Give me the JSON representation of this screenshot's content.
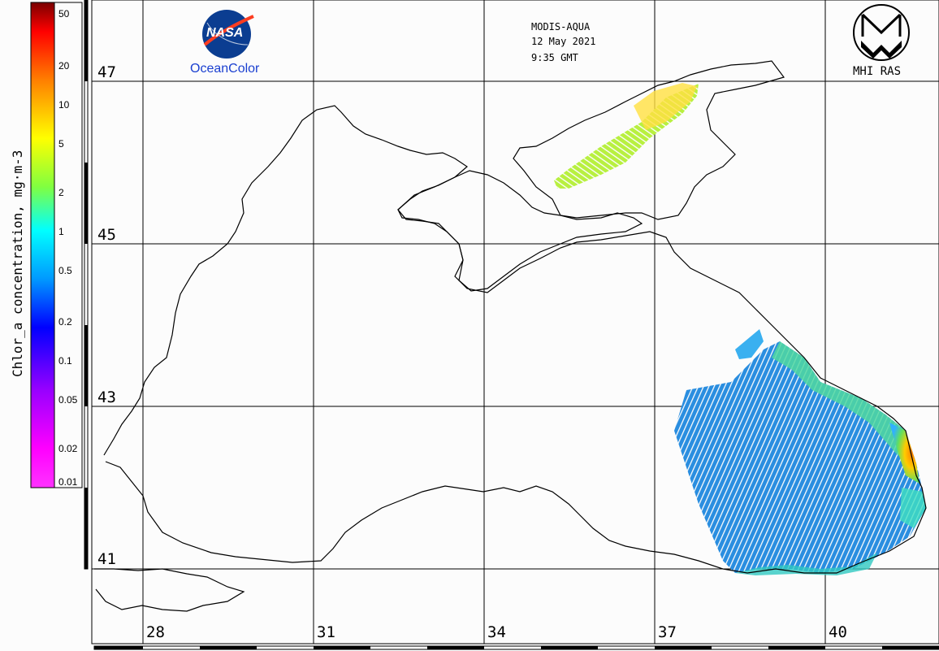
{
  "header": {
    "sensor": "MODIS-AQUA",
    "date": "12 May 2021",
    "time": "9:35 GMT"
  },
  "logos": {
    "nasa_text": "NASA",
    "oceancolor_text": "OceanColor",
    "mhi_text": "MHI RAS"
  },
  "colorbar": {
    "label": "Chlor_a concentration, mg·m-3",
    "ticks": [
      "50",
      "20",
      "10",
      "5",
      "2",
      "1",
      "0.5",
      "0.2",
      "0.1",
      "0.05",
      "0.02",
      "0.01"
    ]
  },
  "grid": {
    "lat_labels": [
      "47",
      "45",
      "43",
      "41"
    ],
    "lon_labels": [
      "28",
      "31",
      "34",
      "37",
      "40"
    ]
  },
  "colors": {
    "coast": "#000000",
    "background": "#fcfcfc",
    "nasa_blue": "#0b3d91",
    "nasa_red": "#fc3d21",
    "ocean_color_text": "#1a3fd0"
  }
}
